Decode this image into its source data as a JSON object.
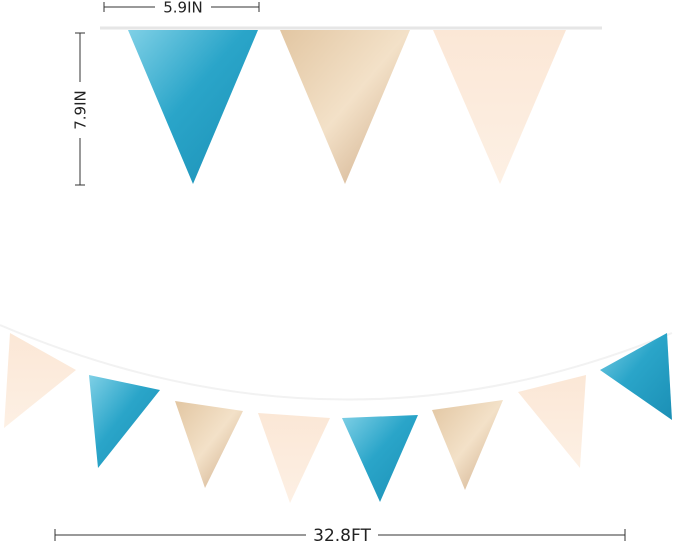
{
  "dimensions": {
    "flag_width": "5.9IN",
    "flag_height": "7.9IN",
    "total_length": "32.8FT"
  }
}
